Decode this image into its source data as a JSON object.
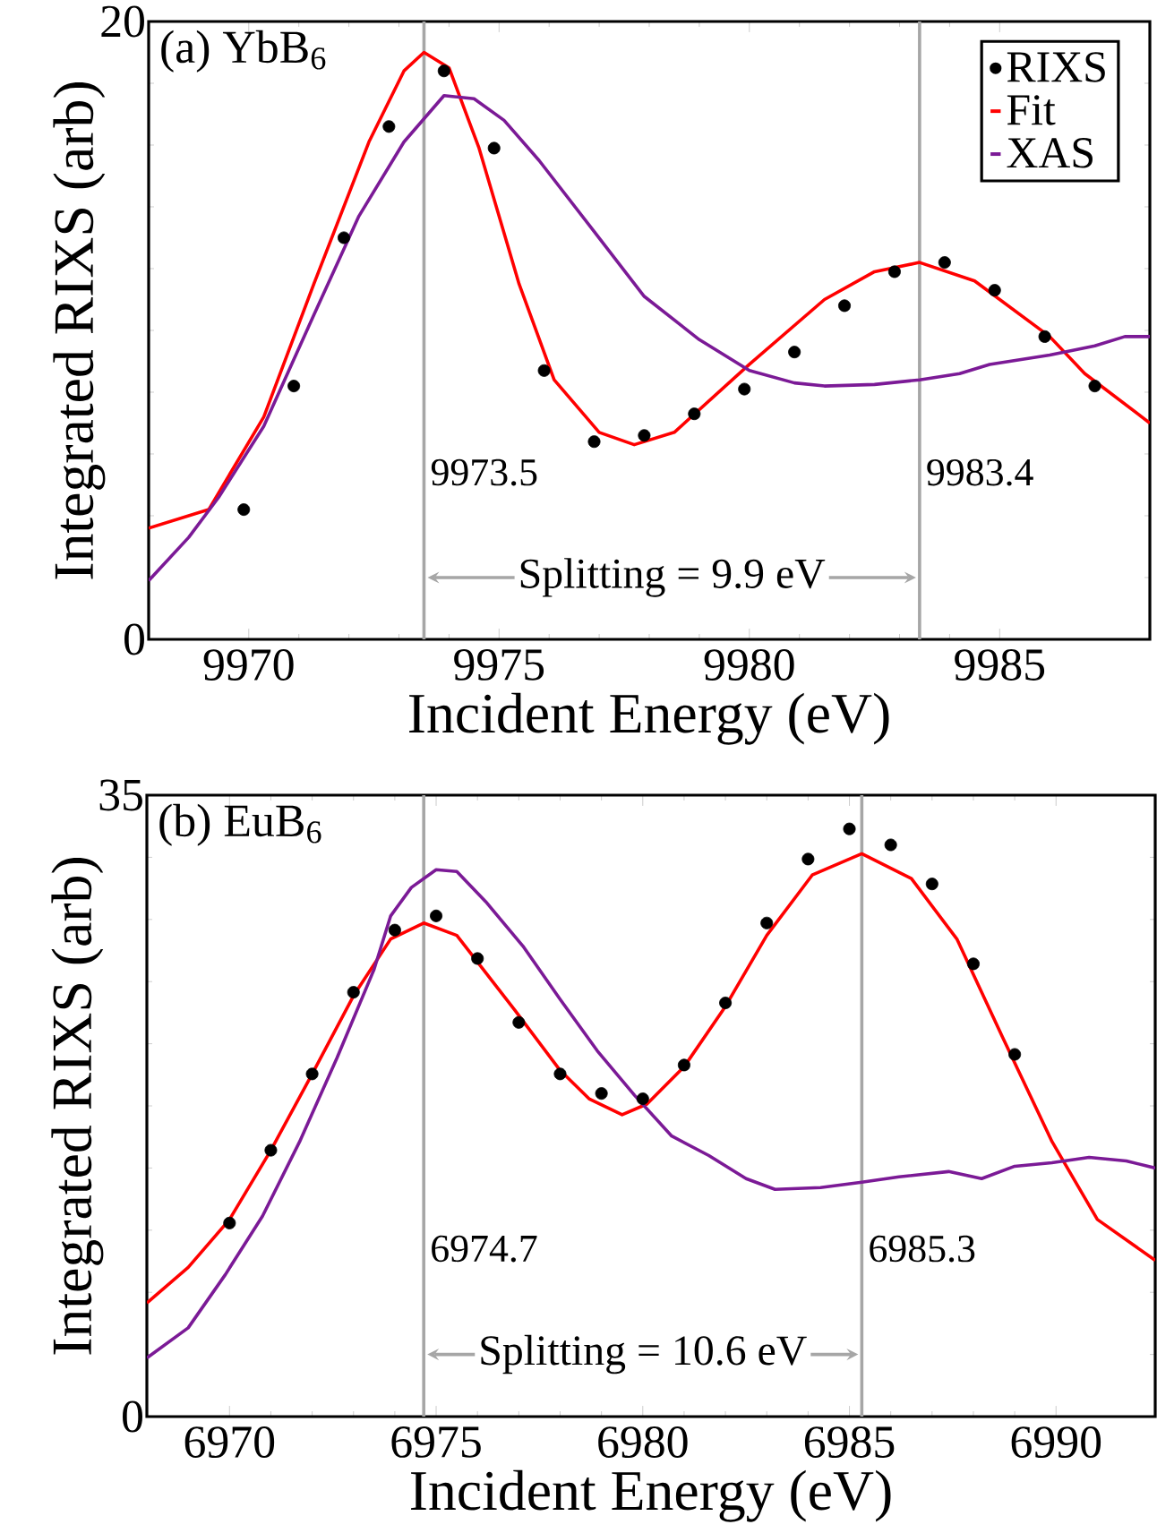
{
  "chart_data": [
    {
      "type": "line",
      "title": "(a) YbB$_{6}$",
      "xlabel": "Incident Energy (eV)",
      "ylabel": "Integrated RIXS (arb)",
      "xlim": [
        9968,
        9988
      ],
      "ylim": [
        0,
        20
      ],
      "xticks": [
        9970,
        9975,
        9980,
        9985
      ],
      "yticks": [
        0,
        20
      ],
      "legend": "top right",
      "series": [
        {
          "name": "RIXS",
          "type": "scatter",
          "color": "#000000",
          "x": [
            9969.9,
            9970.9,
            9971.9,
            9972.8,
            9973.9,
            9974.9,
            9975.9,
            9976.9,
            9977.9,
            9978.9,
            9979.9,
            9980.9,
            9981.9,
            9982.9,
            9983.9,
            9984.9,
            9985.9,
            9986.9
          ],
          "values": [
            4.2,
            8.2,
            13.0,
            16.6,
            18.4,
            15.9,
            8.7,
            6.4,
            6.6,
            7.3,
            8.1,
            9.3,
            10.8,
            11.9,
            12.2,
            11.3,
            9.8,
            8.2
          ]
        },
        {
          "name": "Fit",
          "color": "#ff0000",
          "x": [
            9968,
            9969.2,
            9970.3,
            9971.3,
            9972.4,
            9973.1,
            9973.5,
            9974.0,
            9974.6,
            9975.4,
            9976.1,
            9977.0,
            9977.7,
            9978.5,
            9980.0,
            9981.5,
            9982.5,
            9983.4,
            9984.5,
            9986.0,
            9986.7,
            9988
          ],
          "values": [
            3.6,
            4.2,
            7.2,
            11.5,
            16.1,
            18.4,
            19.0,
            18.5,
            15.9,
            11.5,
            8.4,
            6.7,
            6.3,
            6.7,
            8.9,
            11.0,
            11.9,
            12.2,
            11.6,
            9.8,
            8.6,
            7.0
          ]
        },
        {
          "name": "XAS",
          "color": "#7b1a96",
          "x": [
            9968,
            9968.8,
            9969.4,
            9970.3,
            9971.3,
            9972.2,
            9973.1,
            9973.9,
            9974.5,
            9975.1,
            9975.8,
            9976.9,
            9977.9,
            9979.0,
            9980.0,
            9980.9,
            9981.5,
            9982.5,
            9983.4,
            9984.2,
            9984.8,
            9986.0,
            9986.9,
            9987.5,
            9988
          ],
          "values": [
            1.9,
            3.3,
            4.6,
            6.9,
            10.5,
            13.7,
            16.1,
            17.6,
            17.5,
            16.8,
            15.5,
            13.2,
            11.1,
            9.7,
            8.7,
            8.3,
            8.2,
            8.25,
            8.4,
            8.6,
            8.9,
            9.2,
            9.5,
            9.8,
            9.8
          ]
        }
      ],
      "ref_lines": [
        {
          "axis": "x",
          "value": 9973.5,
          "label": "9973.5",
          "color": "#a6a6a6"
        },
        {
          "axis": "x",
          "value": 9983.4,
          "label": "9983.4",
          "color": "#a6a6a6"
        }
      ],
      "annotations": [
        "Splitting = 9.9 eV"
      ]
    },
    {
      "type": "line",
      "title": "(b) EuB$_{6}$",
      "xlabel": "Incident Energy (eV)",
      "ylabel": "Integrated RIXS (arb)",
      "xlim": [
        6968,
        6992.4
      ],
      "ylim": [
        0,
        35
      ],
      "xticks": [
        6970,
        6975,
        6980,
        6985,
        6990
      ],
      "yticks": [
        0,
        35
      ],
      "series": [
        {
          "type": "scatter",
          "color": "#000000",
          "x": [
            6970,
            6971,
            6972,
            6973,
            6974,
            6975,
            6976,
            6977,
            6978,
            6979,
            6980,
            6981,
            6982,
            6983,
            6984,
            6985,
            6986,
            6987,
            6988,
            6989
          ],
          "values": [
            10.9,
            15.0,
            19.3,
            23.9,
            27.4,
            28.2,
            25.8,
            22.2,
            19.3,
            18.2,
            17.9,
            19.8,
            23.3,
            27.8,
            31.4,
            33.1,
            32.2,
            30.0,
            25.5,
            20.4
          ]
        },
        {
          "color": "#ff0000",
          "x": [
            6968,
            6969.0,
            6970,
            6971,
            6972,
            6973,
            6973.9,
            6974.7,
            6975.5,
            6976.9,
            6978.0,
            6978.7,
            6979.5,
            6980.1,
            6981.0,
            6982,
            6983,
            6984.1,
            6985.3,
            6986.5,
            6987.6,
            6988.7,
            6989.9,
            6991.0,
            6992.4
          ],
          "values": [
            6.4,
            8.4,
            11.1,
            15.0,
            19.3,
            23.7,
            26.9,
            27.8,
            27.1,
            22.9,
            19.5,
            17.9,
            17.0,
            17.6,
            19.7,
            23.1,
            27.1,
            30.5,
            31.7,
            30.3,
            26.9,
            21.4,
            15.5,
            11.1,
            8.8
          ]
        },
        {
          "color": "#7b1a96",
          "x": [
            6968,
            6969,
            6969.9,
            6970.8,
            6971.7,
            6972.6,
            6973.5,
            6973.9,
            6974.4,
            6975.0,
            6975.5,
            6976.2,
            6977.1,
            6978.0,
            6978.9,
            6979.8,
            6980.7,
            6981.6,
            6982.5,
            6983.2,
            6984.3,
            6985.3,
            6986.2,
            6987.4,
            6988.2,
            6989.0,
            6989.9,
            6990.8,
            6991.7,
            6992.4
          ],
          "values": [
            3.3,
            5.0,
            8.0,
            11.3,
            15.5,
            20.2,
            25.2,
            28.2,
            29.8,
            30.8,
            30.7,
            29.0,
            26.5,
            23.5,
            20.6,
            18.1,
            15.8,
            14.7,
            13.4,
            12.8,
            12.9,
            13.2,
            13.5,
            13.8,
            13.4,
            14.1,
            14.3,
            14.6,
            14.4,
            14.0
          ]
        }
      ],
      "ref_lines": [
        {
          "axis": "x",
          "value": 6974.7,
          "label": "6974.7",
          "color": "#a6a6a6"
        },
        {
          "axis": "x",
          "value": 6985.3,
          "label": "6985.3",
          "color": "#a6a6a6"
        }
      ],
      "annotations": [
        "Splitting = 10.6 eV"
      ]
    }
  ]
}
